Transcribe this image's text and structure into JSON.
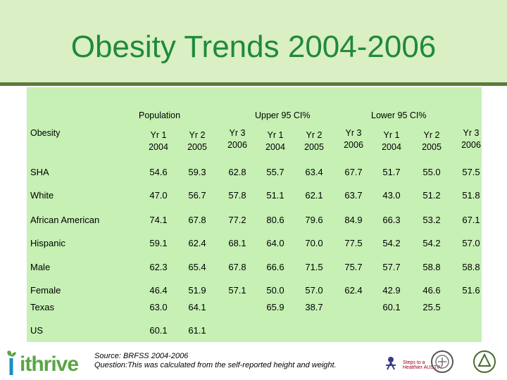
{
  "title": "Obesity Trends 2004-2006",
  "groups": {
    "population": "Population",
    "upper": "Upper 95 CI%",
    "lower": "Lower 95 CI%"
  },
  "first_col_header": "Obesity",
  "year_headers": [
    {
      "line1": "Yr 1",
      "line2": "2004"
    },
    {
      "line1": "Yr 2",
      "line2": "2005"
    },
    {
      "line1": "Yr 3",
      "line2": "2006"
    },
    {
      "line1": "Yr 1",
      "line2": "2004"
    },
    {
      "line1": "Yr 2",
      "line2": "2005"
    },
    {
      "line1": "Yr 3",
      "line2": "2006"
    },
    {
      "line1": "Yr 1",
      "line2": "2004"
    },
    {
      "line1": "Yr 2",
      "line2": "2005"
    },
    {
      "line1": "Yr 3",
      "line2": "2006"
    }
  ],
  "rows": [
    {
      "label": "SHA",
      "values": [
        "54.6",
        "59.3",
        "62.8",
        "55.7",
        "63.4",
        "67.7",
        "51.7",
        "55.0",
        "57.5"
      ]
    },
    {
      "label": "White",
      "values": [
        "47.0",
        "56.7",
        "57.8",
        "51.1",
        "62.1",
        "63.7",
        "43.0",
        "51.2",
        "51.8"
      ]
    },
    {
      "label": "African American",
      "values": [
        "74.1",
        "67.8",
        "77.2",
        "80.6",
        "79.6",
        "84.9",
        "66.3",
        "53.2",
        "67.1"
      ]
    },
    {
      "label": "Hispanic",
      "values": [
        "59.1",
        "62.4",
        "68.1",
        "64.0",
        "70.0",
        "77.5",
        "54.2",
        "54.2",
        "57.0"
      ]
    },
    {
      "label": "Male",
      "values": [
        "62.3",
        "65.4",
        "67.8",
        "66.6",
        "71.5",
        "75.7",
        "57.7",
        "58.8",
        "58.8"
      ]
    },
    {
      "label": "Female",
      "values": [
        "46.4",
        "51.9",
        "57.1",
        "50.0",
        "57.0",
        "62.4",
        "42.9",
        "46.6",
        "51.6"
      ]
    },
    {
      "label": "Texas",
      "values": [
        "63.0",
        "64.1",
        "",
        "65.9",
        "38.7",
        "",
        "60.1",
        "25.5",
        ""
      ]
    },
    {
      "label": "US",
      "values": [
        "60.1",
        "61.1",
        "",
        "",
        "",
        "",
        "",
        "",
        ""
      ]
    }
  ],
  "footer": {
    "source_line1": "Source: BRFSS 2004-2006",
    "source_line2": "Question:This was calculated from the self-reported height and weight.",
    "logo_text": "ithrive",
    "partner_text": "Steps to a Healthier AUSTIN"
  }
}
